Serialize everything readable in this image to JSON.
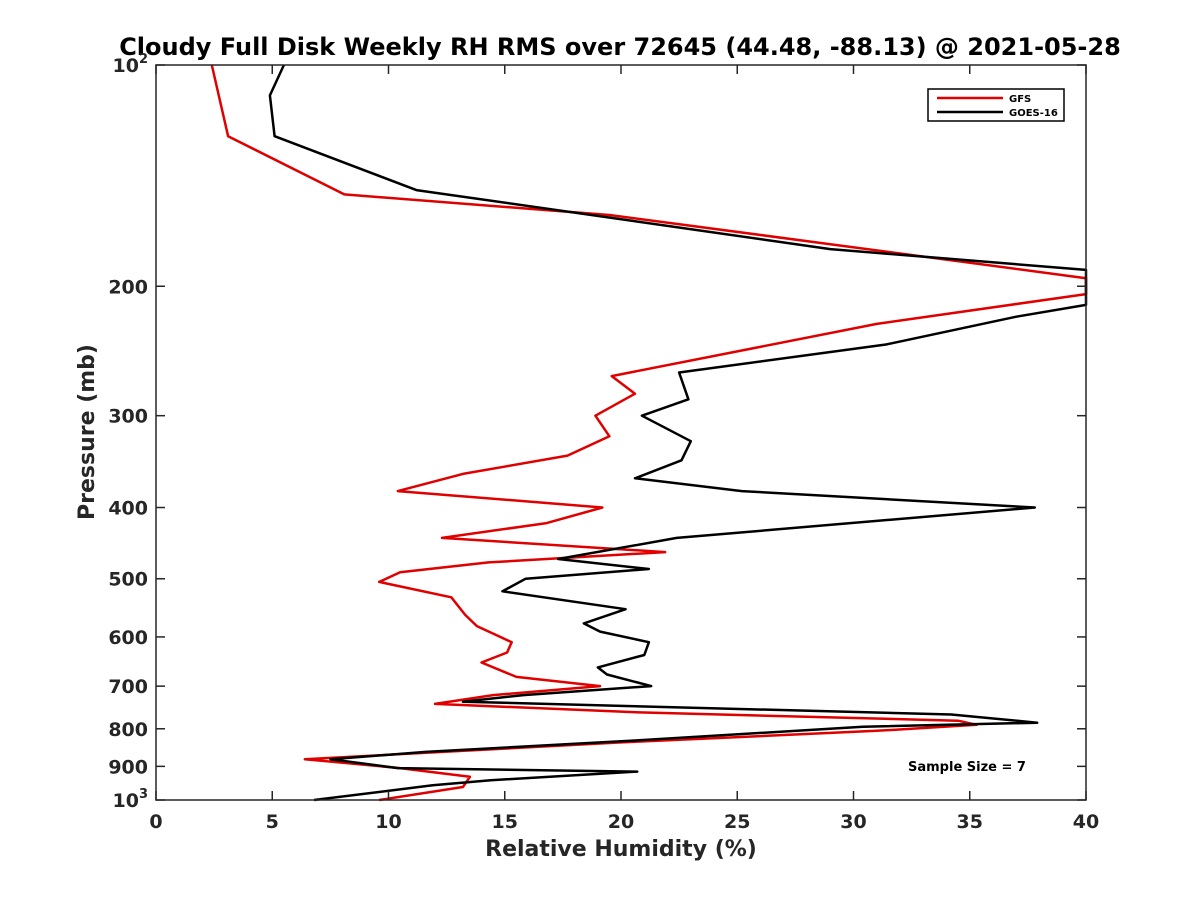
{
  "chart_data": {
    "type": "line",
    "title": "Cloudy Full Disk Weekly RH RMS over 72645 (44.48, -88.13) @ 2021-05-28",
    "xlabel": "Relative Humidity (%)",
    "ylabel": "Pressure (mb)",
    "xlim": [
      0,
      40
    ],
    "ylim": [
      100,
      1000
    ],
    "y_scale": "log",
    "y_reversed": true,
    "x_ticks": [
      0,
      5,
      10,
      15,
      20,
      25,
      30,
      35,
      40
    ],
    "x_tick_labels": [
      "0",
      "5",
      "10",
      "15",
      "20",
      "25",
      "30",
      "35",
      "40"
    ],
    "y_ticks": [
      100,
      200,
      300,
      400,
      500,
      600,
      700,
      800,
      900,
      1000
    ],
    "y_tick_labels": [
      {
        "base": "10",
        "exp": "2"
      },
      {
        "base": "200",
        "exp": ""
      },
      {
        "base": "300",
        "exp": ""
      },
      {
        "base": "400",
        "exp": ""
      },
      {
        "base": "500",
        "exp": ""
      },
      {
        "base": "600",
        "exp": ""
      },
      {
        "base": "700",
        "exp": ""
      },
      {
        "base": "800",
        "exp": ""
      },
      {
        "base": "900",
        "exp": ""
      },
      {
        "base": "10",
        "exp": "3"
      }
    ],
    "grid": false,
    "legend_position": "top-right",
    "annotation": "Sample Size = 7",
    "series": [
      {
        "name": "GFS",
        "color": "#e00000",
        "points": [
          [
            2.4,
            100
          ],
          [
            3.1,
            125
          ],
          [
            8.1,
            150
          ],
          [
            19.5,
            160
          ],
          [
            28.8,
            175
          ],
          [
            40,
            195
          ],
          [
            40,
            205
          ],
          [
            31.0,
            225
          ],
          [
            19.6,
            265
          ],
          [
            20.6,
            280
          ],
          [
            18.9,
            300
          ],
          [
            19.5,
            320
          ],
          [
            17.7,
            340
          ],
          [
            13.2,
            360
          ],
          [
            10.4,
            380
          ],
          [
            19.2,
            400
          ],
          [
            16.8,
            420
          ],
          [
            12.3,
            440
          ],
          [
            21.9,
            460
          ],
          [
            14.3,
            475
          ],
          [
            10.5,
            490
          ],
          [
            9.6,
            505
          ],
          [
            12.7,
            530
          ],
          [
            13.3,
            560
          ],
          [
            13.8,
            580
          ],
          [
            15.3,
            610
          ],
          [
            15.1,
            630
          ],
          [
            14.0,
            650
          ],
          [
            15.5,
            680
          ],
          [
            19.1,
            700
          ],
          [
            14.5,
            720
          ],
          [
            12.0,
            740
          ],
          [
            20.8,
            760
          ],
          [
            34.5,
            780
          ],
          [
            35.3,
            790
          ],
          [
            31.0,
            805
          ],
          [
            20.0,
            835
          ],
          [
            6.4,
            880
          ],
          [
            10.5,
            905
          ],
          [
            13.5,
            930
          ],
          [
            13.2,
            960
          ],
          [
            9.6,
            1000
          ]
        ]
      },
      {
        "name": "GOES-16",
        "color": "#000000",
        "points": [
          [
            5.5,
            100
          ],
          [
            4.9,
            110
          ],
          [
            5.1,
            125
          ],
          [
            11.2,
            148
          ],
          [
            29.0,
            178
          ],
          [
            40,
            190
          ],
          [
            40,
            212
          ],
          [
            37.0,
            220
          ],
          [
            31.4,
            240
          ],
          [
            22.5,
            262
          ],
          [
            22.9,
            285
          ],
          [
            20.9,
            300
          ],
          [
            23.0,
            325
          ],
          [
            22.6,
            345
          ],
          [
            20.6,
            365
          ],
          [
            25.2,
            380
          ],
          [
            37.8,
            400
          ],
          [
            22.4,
            440
          ],
          [
            17.3,
            470
          ],
          [
            21.2,
            485
          ],
          [
            15.9,
            500
          ],
          [
            14.9,
            520
          ],
          [
            20.2,
            550
          ],
          [
            18.4,
            575
          ],
          [
            19.1,
            590
          ],
          [
            21.2,
            610
          ],
          [
            21.0,
            635
          ],
          [
            19.0,
            660
          ],
          [
            19.4,
            675
          ],
          [
            21.3,
            700
          ],
          [
            15.8,
            720
          ],
          [
            13.2,
            735
          ],
          [
            20.2,
            745
          ],
          [
            34.2,
            765
          ],
          [
            37.9,
            785
          ],
          [
            30.4,
            795
          ],
          [
            20.6,
            830
          ],
          [
            11.6,
            860
          ],
          [
            7.5,
            880
          ],
          [
            10.4,
            905
          ],
          [
            20.7,
            915
          ],
          [
            14.4,
            940
          ],
          [
            11.9,
            955
          ],
          [
            6.8,
            1000
          ]
        ]
      }
    ]
  }
}
